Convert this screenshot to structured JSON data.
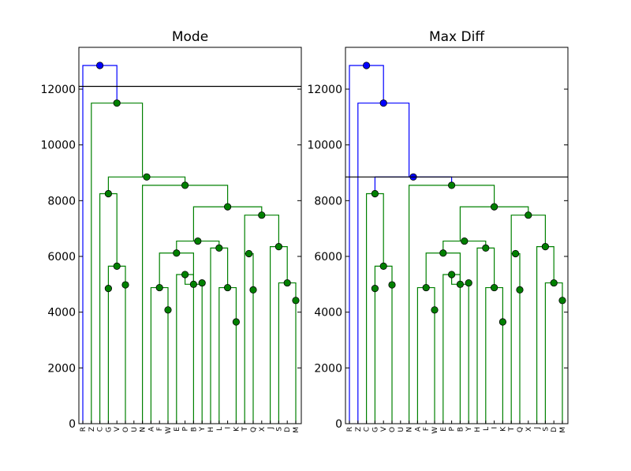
{
  "chart_data": [
    {
      "type": "dendrogram",
      "title": "Mode",
      "cut_height": 12100,
      "ylim": [
        0,
        13500
      ],
      "yticks": [
        0,
        2000,
        4000,
        6000,
        8000,
        10000,
        12000
      ],
      "leaves": [
        "R",
        "Z",
        "C",
        "G",
        "V",
        "O",
        "U",
        "N",
        "A",
        "F",
        "W",
        "E",
        "P",
        "B",
        "Y",
        "H",
        "L",
        "I",
        "K",
        "T",
        "Q",
        "X",
        "J",
        "S",
        "D",
        "M"
      ],
      "links": [
        {
          "left": [
            0,
            0
          ],
          "right": [
            4,
            11500
          ],
          "height": 12850,
          "color": "blue"
        },
        {
          "left": [
            1,
            0
          ],
          "right": [
            7,
            8850
          ],
          "height": 11500,
          "color": "green"
        },
        {
          "left": [
            3,
            8250
          ],
          "right": [
            12,
            8550
          ],
          "height": 8850,
          "color": "green"
        },
        {
          "left": [
            2,
            0
          ],
          "right": [
            4,
            5650
          ],
          "height": 8250,
          "color": "green"
        },
        {
          "left": [
            3,
            4850
          ],
          "right": [
            5,
            4980
          ],
          "height": 5650,
          "color": "green"
        },
        {
          "left": [
            3,
            0
          ],
          "right": [
            3,
            0
          ],
          "height": 4850,
          "color": "green"
        },
        {
          "left": [
            5,
            0
          ],
          "right": [
            5,
            0
          ],
          "height": 4980,
          "color": "green"
        },
        {
          "left": [
            7,
            0
          ],
          "right": [
            17,
            7780
          ],
          "height": 8550,
          "color": "green"
        },
        {
          "left": [
            13,
            6550
          ],
          "right": [
            21,
            7480
          ],
          "height": 7780,
          "color": "green"
        },
        {
          "left": [
            11,
            6120
          ],
          "right": [
            16,
            6300
          ],
          "height": 6550,
          "color": "green"
        },
        {
          "left": [
            9,
            4880
          ],
          "right": [
            13,
            5000
          ],
          "height": 6120,
          "color": "green"
        },
        {
          "left": [
            8,
            0
          ],
          "right": [
            10,
            4080
          ],
          "height": 4880,
          "color": "green"
        },
        {
          "left": [
            10,
            0
          ],
          "right": [
            10,
            0
          ],
          "height": 4080,
          "color": "green"
        },
        {
          "left": [
            12,
            5350
          ],
          "right": [
            14,
            5050
          ],
          "height": 5000,
          "color": "green"
        },
        {
          "left": [
            11,
            0
          ],
          "right": [
            13,
            0
          ],
          "height": 5350,
          "color": "green"
        },
        {
          "left": [
            14,
            0
          ],
          "right": [
            14,
            0
          ],
          "height": 5050,
          "color": "green"
        },
        {
          "left": [
            15,
            0
          ],
          "right": [
            17,
            4880
          ],
          "height": 6300,
          "color": "green"
        },
        {
          "left": [
            16,
            0
          ],
          "right": [
            18,
            3650
          ],
          "height": 4880,
          "color": "green"
        },
        {
          "left": [
            18,
            0
          ],
          "right": [
            18,
            0
          ],
          "height": 3650,
          "color": "green"
        },
        {
          "left": [
            19,
            6100
          ],
          "right": [
            23,
            6350
          ],
          "height": 7480,
          "color": "green"
        },
        {
          "left": [
            19,
            0
          ],
          "right": [
            20,
            4800
          ],
          "height": 6100,
          "color": "green"
        },
        {
          "left": [
            20,
            0
          ],
          "right": [
            20,
            0
          ],
          "height": 4800,
          "color": "green"
        },
        {
          "left": [
            22,
            0
          ],
          "right": [
            24,
            5050
          ],
          "height": 6350,
          "color": "green"
        },
        {
          "left": [
            23,
            0
          ],
          "right": [
            25,
            4420
          ],
          "height": 5050,
          "color": "green"
        },
        {
          "left": [
            25,
            0
          ],
          "right": [
            25,
            0
          ],
          "height": 4420,
          "color": "green"
        }
      ]
    },
    {
      "type": "dendrogram",
      "title": "Max Diff",
      "cut_height": 8850,
      "ylim": [
        0,
        13500
      ],
      "yticks": [
        0,
        2000,
        4000,
        6000,
        8000,
        10000,
        12000
      ],
      "leaves": [
        "R",
        "Z",
        "C",
        "G",
        "V",
        "O",
        "U",
        "N",
        "A",
        "F",
        "W",
        "E",
        "P",
        "B",
        "Y",
        "H",
        "L",
        "I",
        "K",
        "T",
        "Q",
        "X",
        "J",
        "S",
        "D",
        "M"
      ],
      "links": [
        {
          "left": [
            0,
            0
          ],
          "right": [
            4,
            11500
          ],
          "height": 12850,
          "color": "blue"
        },
        {
          "left": [
            1,
            0
          ],
          "right": [
            7,
            8850
          ],
          "height": 11500,
          "color": "blue"
        },
        {
          "left": [
            3,
            8250
          ],
          "right": [
            12,
            8550
          ],
          "height": 8850,
          "color": "blue"
        },
        {
          "left": [
            2,
            0
          ],
          "right": [
            4,
            5650
          ],
          "height": 8250,
          "color": "green"
        },
        {
          "left": [
            3,
            4850
          ],
          "right": [
            5,
            4980
          ],
          "height": 5650,
          "color": "green"
        },
        {
          "left": [
            3,
            0
          ],
          "right": [
            3,
            0
          ],
          "height": 4850,
          "color": "green"
        },
        {
          "left": [
            5,
            0
          ],
          "right": [
            5,
            0
          ],
          "height": 4980,
          "color": "green"
        },
        {
          "left": [
            7,
            0
          ],
          "right": [
            17,
            7780
          ],
          "height": 8550,
          "color": "green"
        },
        {
          "left": [
            13,
            6550
          ],
          "right": [
            21,
            7480
          ],
          "height": 7780,
          "color": "green"
        },
        {
          "left": [
            11,
            6120
          ],
          "right": [
            16,
            6300
          ],
          "height": 6550,
          "color": "green"
        },
        {
          "left": [
            9,
            4880
          ],
          "right": [
            13,
            5000
          ],
          "height": 6120,
          "color": "green"
        },
        {
          "left": [
            8,
            0
          ],
          "right": [
            10,
            4080
          ],
          "height": 4880,
          "color": "green"
        },
        {
          "left": [
            10,
            0
          ],
          "right": [
            10,
            0
          ],
          "height": 4080,
          "color": "green"
        },
        {
          "left": [
            12,
            5350
          ],
          "right": [
            14,
            5050
          ],
          "height": 5000,
          "color": "green"
        },
        {
          "left": [
            11,
            0
          ],
          "right": [
            13,
            0
          ],
          "height": 5350,
          "color": "green"
        },
        {
          "left": [
            14,
            0
          ],
          "right": [
            14,
            0
          ],
          "height": 5050,
          "color": "green"
        },
        {
          "left": [
            15,
            0
          ],
          "right": [
            17,
            4880
          ],
          "height": 6300,
          "color": "green"
        },
        {
          "left": [
            16,
            0
          ],
          "right": [
            18,
            3650
          ],
          "height": 4880,
          "color": "green"
        },
        {
          "left": [
            18,
            0
          ],
          "right": [
            18,
            0
          ],
          "height": 3650,
          "color": "green"
        },
        {
          "left": [
            19,
            6100
          ],
          "right": [
            23,
            6350
          ],
          "height": 7480,
          "color": "green"
        },
        {
          "left": [
            19,
            0
          ],
          "right": [
            20,
            4800
          ],
          "height": 6100,
          "color": "green"
        },
        {
          "left": [
            20,
            0
          ],
          "right": [
            20,
            0
          ],
          "height": 4800,
          "color": "green"
        },
        {
          "left": [
            22,
            0
          ],
          "right": [
            24,
            5050
          ],
          "height": 6350,
          "color": "green"
        },
        {
          "left": [
            23,
            0
          ],
          "right": [
            25,
            4420
          ],
          "height": 5050,
          "color": "green"
        },
        {
          "left": [
            25,
            0
          ],
          "right": [
            25,
            0
          ],
          "height": 4420,
          "color": "green"
        }
      ]
    }
  ],
  "colors": {
    "blue": "#0000ff",
    "green": "#008000",
    "cut_line": "#000000",
    "node_edge": "#000000"
  }
}
